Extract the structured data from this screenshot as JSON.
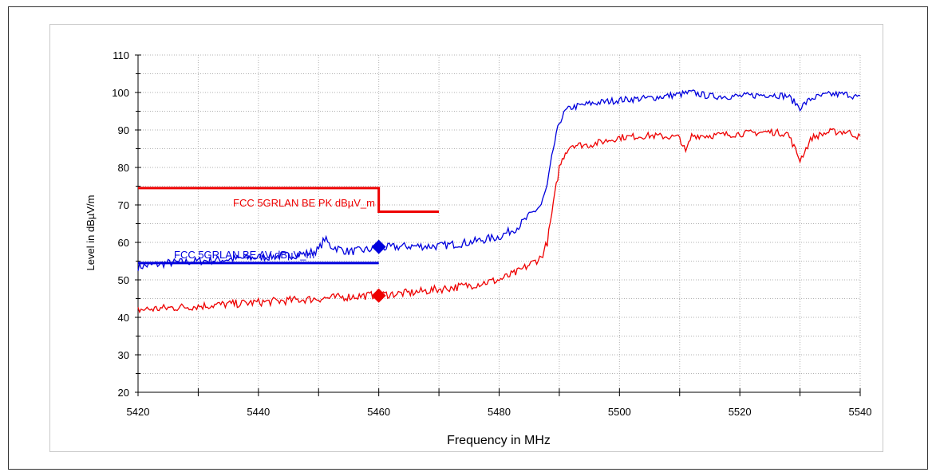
{
  "chart_data": {
    "type": "line",
    "xlabel": "Frequency in MHz",
    "ylabel": "Level in dBµV/m",
    "xlim": [
      5420,
      5540
    ],
    "ylim": [
      20,
      110
    ],
    "x_ticks": [
      5420,
      5440,
      5460,
      5480,
      5500,
      5520,
      5540
    ],
    "y_ticks": [
      20,
      30,
      40,
      50,
      60,
      70,
      80,
      90,
      100,
      110
    ],
    "grid": true,
    "colors": {
      "peak": "#0000dd",
      "average": "#ee0000",
      "grid": "#b0b0b0"
    },
    "series": [
      {
        "color": "#0000dd",
        "x": [
          5420,
          5425,
          5430,
          5435,
          5440,
          5445,
          5448,
          5450,
          5451,
          5452,
          5455,
          5458,
          5460,
          5465,
          5470,
          5475,
          5480,
          5483,
          5485,
          5487,
          5488,
          5489,
          5490,
          5491,
          5492,
          5495,
          5500,
          5505,
          5510,
          5512,
          5515,
          5520,
          5525,
          5528,
          5530,
          5532,
          5535,
          5538,
          5540
        ],
        "y": [
          53.5,
          54.5,
          55,
          55.5,
          56,
          56.5,
          57,
          58,
          61,
          59,
          57.5,
          58,
          58.5,
          59,
          59,
          60,
          61.5,
          64,
          67,
          70,
          75,
          85,
          92,
          95,
          96,
          97,
          98,
          98.5,
          99.5,
          100,
          99,
          99,
          99.5,
          99,
          96,
          98.5,
          99.5,
          99.5,
          98.5
        ]
      },
      {
        "color": "#ee0000",
        "x": [
          5420,
          5425,
          5430,
          5435,
          5440,
          5445,
          5450,
          5455,
          5460,
          5465,
          5470,
          5475,
          5480,
          5483,
          5485,
          5487,
          5488,
          5489,
          5490,
          5491,
          5492,
          5495,
          5500,
          5505,
          5510,
          5511,
          5512,
          5515,
          5520,
          5525,
          5528,
          5530,
          5532,
          5535,
          5538,
          5540
        ],
        "y": [
          42,
          42.5,
          43,
          43.5,
          44,
          44.5,
          45,
          45.5,
          46,
          46.5,
          47.5,
          48.5,
          50,
          52,
          54,
          56,
          60,
          70,
          80,
          84,
          86,
          86,
          88,
          88.5,
          88,
          84,
          88.5,
          88.5,
          89,
          89.5,
          89,
          82,
          88,
          89.5,
          89.5,
          88
        ]
      }
    ],
    "limit_lines": [
      {
        "label": "FCC 5GRLAN BE PK dBµV_m",
        "color": "#ee0000",
        "segments": [
          {
            "x": [
              5420,
              5460
            ],
            "y": 74.5
          },
          {
            "x": [
              5460,
              5470
            ],
            "y": 68.2
          }
        ]
      },
      {
        "label": "FCC 5GRLAN BE AV dBµV_m",
        "color": "#0000dd",
        "segments": [
          {
            "x": [
              5420,
              5460
            ],
            "y": 54.5
          }
        ]
      }
    ],
    "markers": [
      {
        "x": 5460,
        "y": 58.8,
        "color": "#0000dd",
        "shape": "diamond"
      },
      {
        "x": 5460,
        "y": 45.8,
        "color": "#ee0000",
        "shape": "diamond"
      }
    ]
  }
}
